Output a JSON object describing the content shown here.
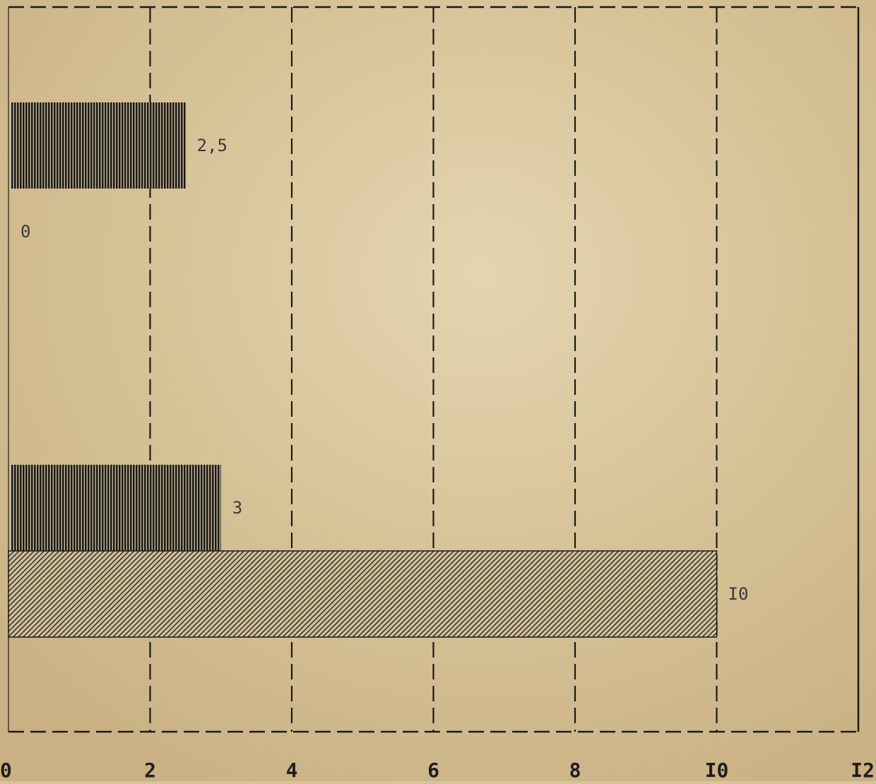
{
  "chart_data": {
    "type": "bar",
    "orientation": "horizontal",
    "title": "",
    "xlabel": "",
    "ylabel": "",
    "xlim": [
      0,
      12
    ],
    "grid": "vertical dashed",
    "x_tick_labels": [
      "0",
      "2",
      "4",
      "6",
      "8",
      "I0",
      "I2"
    ],
    "series": [
      {
        "pattern": "vertical-lines",
        "color": "#1a1a1a",
        "bars": [
          {
            "value": 2.5,
            "label": "2,5"
          },
          {
            "value": 0,
            "label": "0"
          },
          {
            "value": 3,
            "label": "3"
          }
        ]
      },
      {
        "pattern": "diagonal-hatch",
        "color": "#3a3228",
        "bars": [
          {
            "value": 10,
            "label": "I0"
          }
        ]
      }
    ]
  },
  "colors": {
    "paper": "#d8c49a",
    "paper_light": "#e6d8b6",
    "ink": "#1a1a1a",
    "hatch_fill": "#cdbb93"
  }
}
